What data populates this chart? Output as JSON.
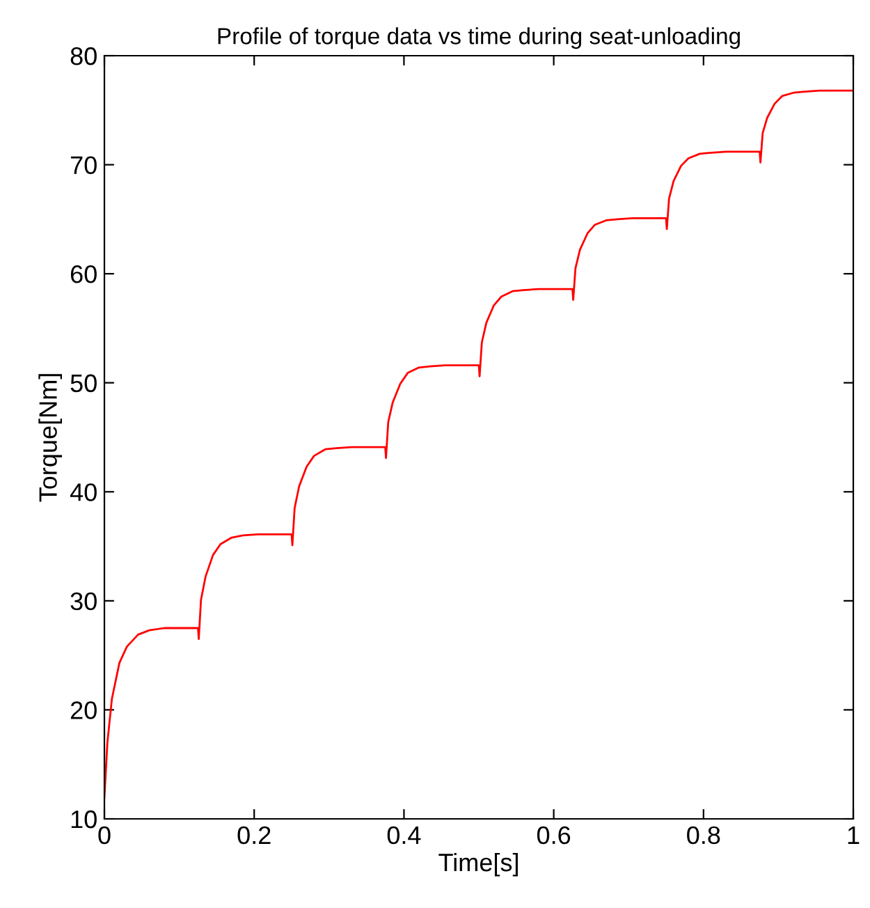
{
  "chart_data": {
    "type": "line",
    "title": "Profile of torque data vs time during seat-unloading",
    "xlabel": "Time[s]",
    "ylabel": "Torque[Nm]",
    "xlim": [
      0,
      1
    ],
    "ylim": [
      10,
      80
    ],
    "xticks": [
      0,
      0.2,
      0.4,
      0.6,
      0.8,
      1
    ],
    "yticks": [
      10,
      20,
      30,
      40,
      50,
      60,
      70,
      80
    ],
    "grid": false,
    "legend": false,
    "line_style": "solid",
    "marker": "none",
    "series": [
      {
        "color": "#ff0000",
        "x": [
          0,
          0.004,
          0.01,
          0.02,
          0.03,
          0.045,
          0.06,
          0.08,
          0.125,
          0.126,
          0.129,
          0.135,
          0.145,
          0.155,
          0.17,
          0.185,
          0.205,
          0.25,
          0.251,
          0.254,
          0.26,
          0.27,
          0.28,
          0.295,
          0.31,
          0.33,
          0.375,
          0.376,
          0.379,
          0.385,
          0.395,
          0.405,
          0.42,
          0.435,
          0.455,
          0.5,
          0.501,
          0.504,
          0.51,
          0.52,
          0.53,
          0.545,
          0.56,
          0.58,
          0.625,
          0.626,
          0.629,
          0.635,
          0.645,
          0.655,
          0.67,
          0.685,
          0.705,
          0.75,
          0.751,
          0.754,
          0.76,
          0.77,
          0.78,
          0.795,
          0.81,
          0.83,
          0.875,
          0.876,
          0.879,
          0.885,
          0.895,
          0.905,
          0.92,
          0.935,
          0.955,
          1.0
        ],
        "values": [
          12,
          17,
          21,
          24.3,
          25.8,
          26.9,
          27.3,
          27.5,
          27.5,
          26.5,
          30.1,
          32.2,
          34.2,
          35.2,
          35.8,
          36.0,
          36.1,
          36.1,
          35.1,
          38.5,
          40.5,
          42.3,
          43.3,
          43.9,
          44.0,
          44.1,
          44.1,
          43.1,
          46.4,
          48.2,
          49.9,
          50.9,
          51.4,
          51.5,
          51.6,
          51.6,
          50.6,
          53.7,
          55.5,
          57.1,
          57.9,
          58.4,
          58.5,
          58.6,
          58.6,
          57.6,
          60.5,
          62.2,
          63.7,
          64.5,
          64.9,
          65.0,
          65.1,
          65.1,
          64.1,
          66.9,
          68.5,
          69.9,
          70.6,
          71.0,
          71.1,
          71.2,
          71.2,
          70.2,
          72.9,
          74.3,
          75.6,
          76.3,
          76.6,
          76.7,
          76.8,
          76.8
        ]
      }
    ]
  }
}
